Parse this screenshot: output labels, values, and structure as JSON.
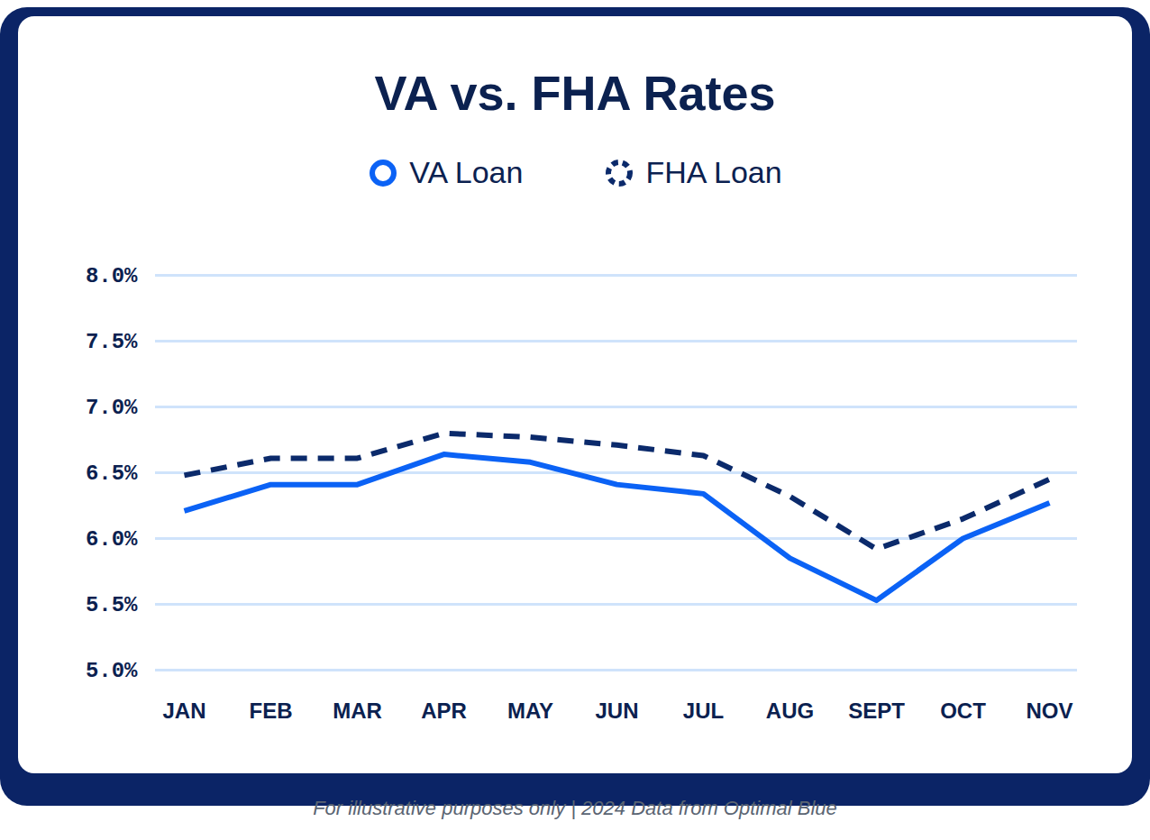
{
  "chart_data": {
    "type": "line",
    "title": "VA vs. FHA Rates",
    "caption": "For illustrative purposes only | 2024 Data from Optimal Blue",
    "categories": [
      "JAN",
      "FEB",
      "MAR",
      "APR",
      "MAY",
      "JUN",
      "JUL",
      "AUG",
      "SEPT",
      "OCT",
      "NOV"
    ],
    "series": [
      {
        "name": "VA Loan",
        "color": "#0b62f5",
        "line_style": "solid",
        "values": [
          6.21,
          6.41,
          6.41,
          6.64,
          6.58,
          6.41,
          6.34,
          5.85,
          5.53,
          6.0,
          6.27
        ]
      },
      {
        "name": "FHA Loan",
        "color": "#0b2a6b",
        "line_style": "dashed",
        "values": [
          6.48,
          6.61,
          6.61,
          6.8,
          6.77,
          6.71,
          6.63,
          6.32,
          5.92,
          6.15,
          6.45
        ]
      }
    ],
    "ylim": [
      5.0,
      8.0
    ],
    "yticks": [
      {
        "value": 5.0,
        "label": "5.0%"
      },
      {
        "value": 5.5,
        "label": "5.5%"
      },
      {
        "value": 6.0,
        "label": "6.0%"
      },
      {
        "value": 6.5,
        "label": "6.5%"
      },
      {
        "value": 7.0,
        "label": "7.0%"
      },
      {
        "value": 7.5,
        "label": "7.5%"
      },
      {
        "value": 8.0,
        "label": "8.0%"
      }
    ],
    "grid": true,
    "legend": "top"
  }
}
